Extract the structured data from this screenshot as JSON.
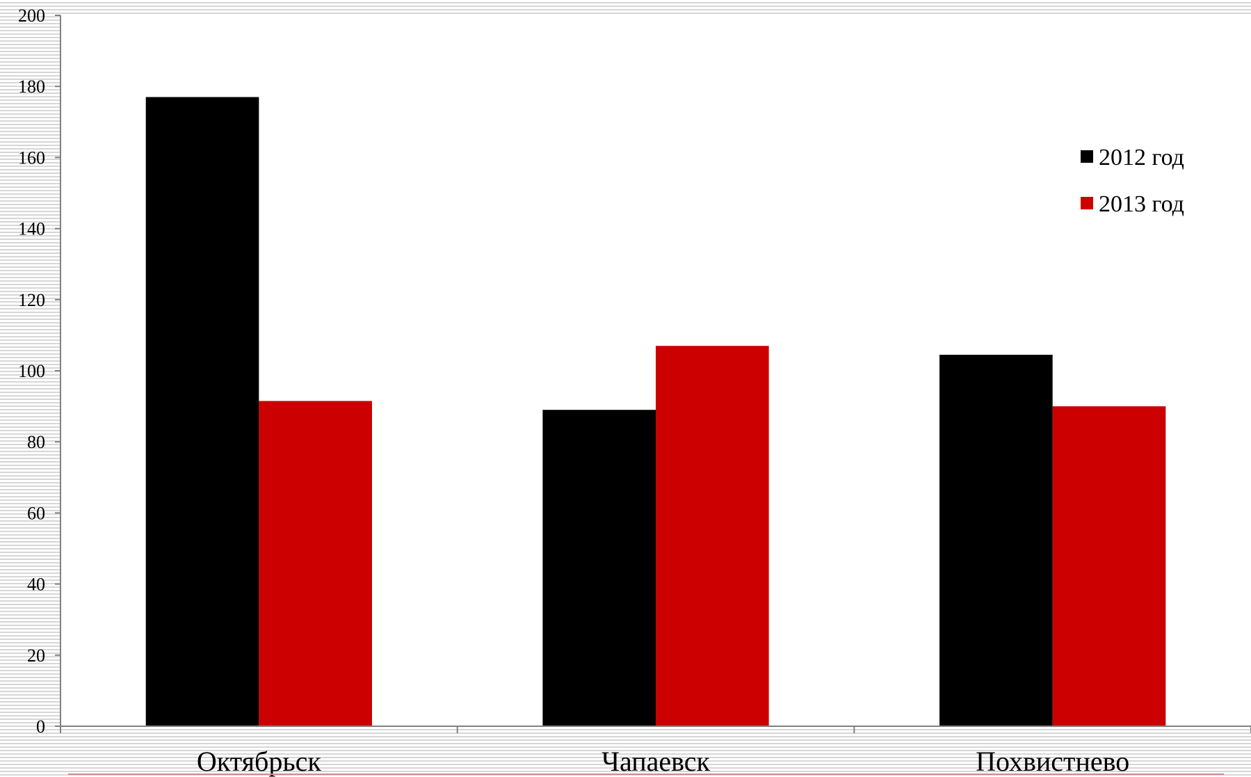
{
  "chart_data": {
    "type": "bar",
    "categories": [
      "Октябрьск",
      "Чапаевск",
      "Похвистнево"
    ],
    "series": [
      {
        "name": "2012 год",
        "color": "#000000",
        "values": [
          177,
          89,
          104.5
        ]
      },
      {
        "name": "2013 год",
        "color": "#cc0000",
        "values": [
          91.5,
          107,
          90
        ]
      }
    ],
    "ylim": [
      0,
      200
    ],
    "yticks": [
      0,
      20,
      40,
      60,
      80,
      100,
      120,
      140,
      160,
      180,
      200
    ],
    "grid": false,
    "legend": "right",
    "title": "",
    "xlabel": "",
    "ylabel": ""
  }
}
